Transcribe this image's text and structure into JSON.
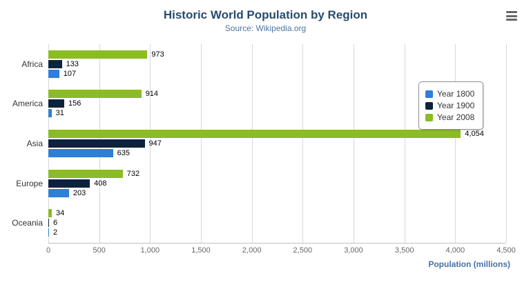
{
  "header": {
    "title": "Historic World Population by Region",
    "subtitle": "Source: Wikipedia.org"
  },
  "colors": {
    "title": "#274b6d",
    "subtitle": "#4d759e",
    "axis_title": "#4572a7",
    "gridline": "#d8d8d8",
    "axis_line": "#c0c0c0"
  },
  "chart_data": {
    "type": "bar",
    "orientation": "horizontal",
    "title": "Historic World Population by Region",
    "subtitle": "Source: Wikipedia.org",
    "categories": [
      "Africa",
      "America",
      "Asia",
      "Europe",
      "Oceania"
    ],
    "series": [
      {
        "name": "Year 1800",
        "color": "#2f7ed8",
        "values": [
          107,
          31,
          635,
          203,
          2
        ]
      },
      {
        "name": "Year 1900",
        "color": "#0d233a",
        "values": [
          133,
          156,
          947,
          408,
          6
        ]
      },
      {
        "name": "Year 2008",
        "color": "#8bbc21",
        "values": [
          973,
          914,
          4054,
          732,
          34
        ]
      }
    ],
    "series_order_top_to_bottom": [
      "Year 2008",
      "Year 1900",
      "Year 1800"
    ],
    "xlabel": "Population (millions)",
    "ylabel": "",
    "xlim": [
      0,
      4500
    ],
    "x_ticks": [
      0,
      500,
      1000,
      1500,
      2000,
      2500,
      3000,
      3500,
      4000,
      4500
    ],
    "x_tick_labels": [
      "0",
      "500",
      "1,000",
      "1,500",
      "2,000",
      "2,500",
      "3,000",
      "3,500",
      "4,000",
      "4,500"
    ],
    "grid": true,
    "legend_position": "right",
    "data_labels_visible": true
  },
  "menu": {
    "icon": "hamburger-icon"
  }
}
